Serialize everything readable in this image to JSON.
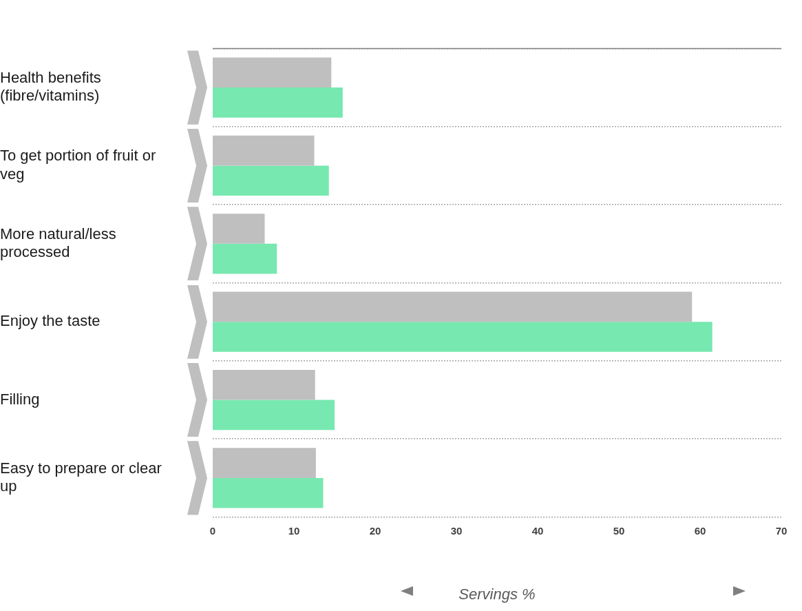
{
  "chart_data": {
    "type": "bar",
    "orientation": "horizontal",
    "xlabel": "Servings %",
    "categories": [
      "Health benefits (fibre/vitamins)",
      "To get portion of fruit or veg",
      "More natural/less processed",
      "Enjoy the taste",
      "Filling",
      "Easy to prepare or clear up"
    ],
    "series": [
      {
        "color": "#bfbfbf",
        "values": [
          14.6,
          12.5,
          6.4,
          59.0,
          12.6,
          12.7
        ]
      },
      {
        "color": "#77e8b0",
        "values": [
          16.0,
          14.3,
          7.9,
          61.5,
          15.0,
          13.6
        ]
      }
    ],
    "xlim": [
      0,
      70
    ],
    "xticks": [
      0,
      10,
      20,
      30,
      40,
      50,
      60,
      70
    ],
    "grid": "y",
    "legend": false
  }
}
